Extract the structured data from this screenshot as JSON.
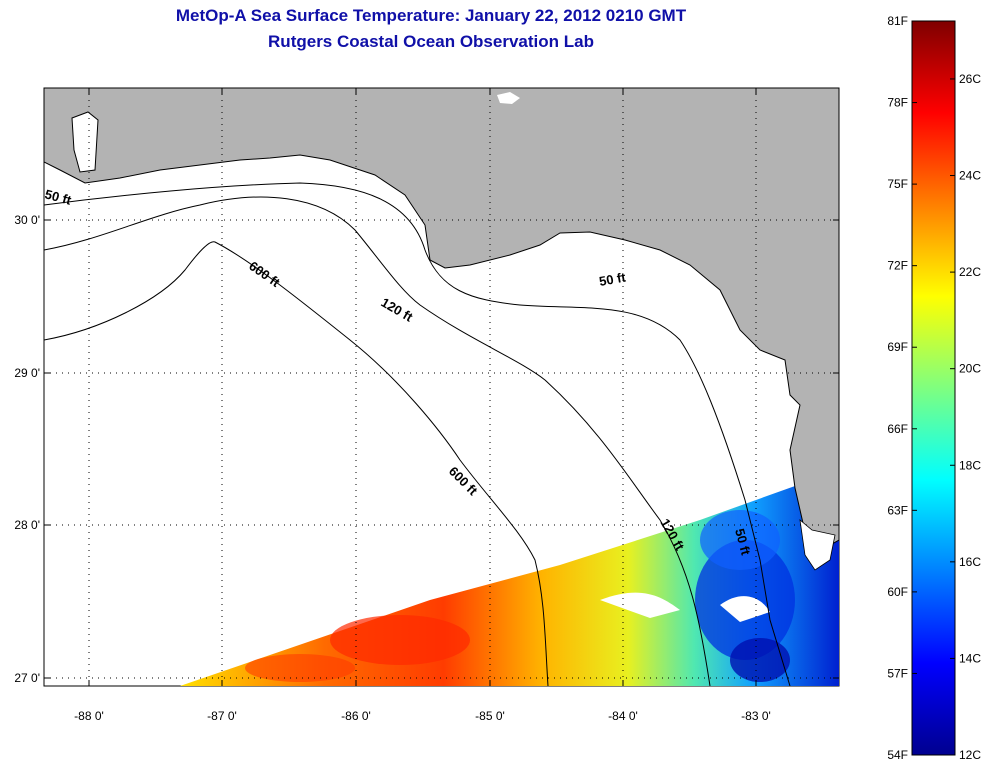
{
  "title": "MetOp-A Sea Surface Temperature:  January 22, 2012 0210 GMT",
  "subtitle": "Rutgers Coastal Ocean Observation Lab",
  "x_axis": {
    "ticks": [
      "-88 0'",
      "-87 0'",
      "-86 0'",
      "-85 0'",
      "-84 0'",
      "-83 0'"
    ],
    "values": [
      -88,
      -87,
      -86,
      -85,
      -84,
      -83
    ],
    "range": [
      -88.33,
      -82.5
    ]
  },
  "y_axis": {
    "ticks": [
      "27 0'",
      "28 0'",
      "29 0'",
      "30 0'"
    ],
    "values": [
      27,
      28,
      29,
      30
    ],
    "range": [
      26.95,
      30.85
    ]
  },
  "grid": "dotted",
  "contours": {
    "ft50_a": "50 ft",
    "ft50_b": "50 ft",
    "ft50_c": "50 ft",
    "ft120_a": "120 ft",
    "ft120_b": "120 ft",
    "ft600_a": "600 ft",
    "ft600_b": "600 ft"
  },
  "colorbar": {
    "scale": "jet",
    "f_ticks": [
      "81F",
      "78F",
      "75F",
      "72F",
      "69F",
      "66F",
      "63F",
      "60F",
      "57F",
      "54F"
    ],
    "c_ticks": [
      "26C",
      "24C",
      "22C",
      "20C",
      "18C",
      "16C",
      "14C",
      "12C"
    ],
    "c_values": [
      26,
      24,
      22,
      20,
      18,
      16,
      14,
      12
    ],
    "range_c": [
      12,
      27.2
    ]
  },
  "colors": {
    "land": "#b3b3b3",
    "ocean": "#ffffff",
    "title": "#1010a8"
  }
}
